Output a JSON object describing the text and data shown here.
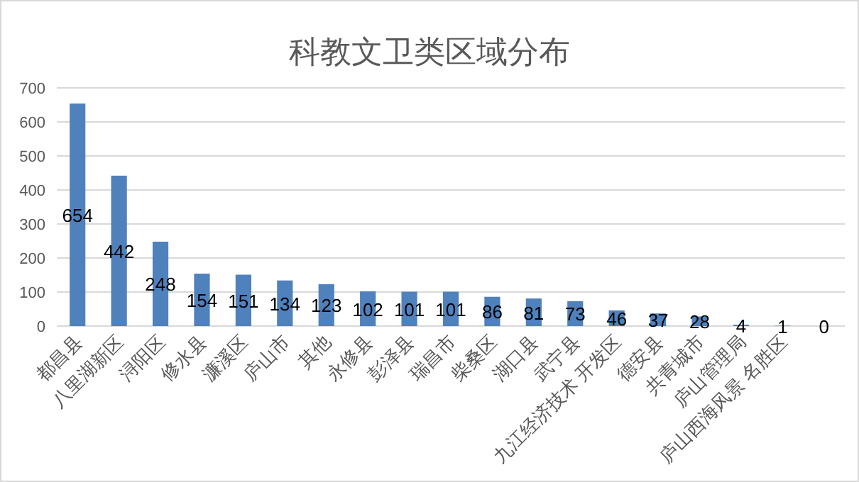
{
  "chart_data": {
    "type": "bar",
    "title": "科教文卫类区域分布",
    "categories": [
      "都昌县",
      "八里湖新区",
      "浔阳区",
      "修水县",
      "濂溪区",
      "庐山市",
      "其他",
      "永修县",
      "彭泽县",
      "瑞昌市",
      "柴桑区",
      "湖口县",
      "武宁县",
      "九江经济技术 开发区",
      "德安县",
      "共青城市",
      "庐山管理局",
      "庐山西海风景 名胜区",
      null
    ],
    "values": [
      654,
      442,
      248,
      154,
      151,
      134,
      123,
      102,
      101,
      101,
      86,
      81,
      73,
      46,
      37,
      28,
      4,
      1,
      0
    ],
    "color": "#4f81bd",
    "ylim": [
      0,
      700
    ],
    "yticks": [
      0,
      100,
      200,
      300,
      400,
      500,
      600,
      700
    ],
    "grid": "y",
    "data_labels": true
  }
}
